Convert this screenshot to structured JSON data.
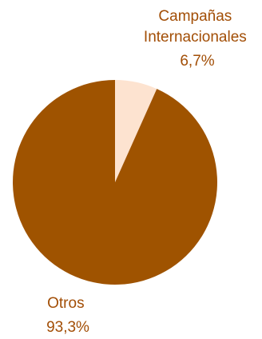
{
  "chart_data": {
    "type": "pie",
    "title": "",
    "slices": [
      {
        "label_lines": [
          "Campañas",
          "Internacionales"
        ],
        "value": 6.7,
        "value_label": "6,7%",
        "color": "#fde3d0"
      },
      {
        "label_lines": [
          "Otros"
        ],
        "value": 93.3,
        "value_label": "93,3%",
        "color": "#9f5300"
      }
    ],
    "label_color": "#a24e06",
    "start_angle_deg": 0,
    "direction": "clockwise",
    "legend": "none"
  }
}
